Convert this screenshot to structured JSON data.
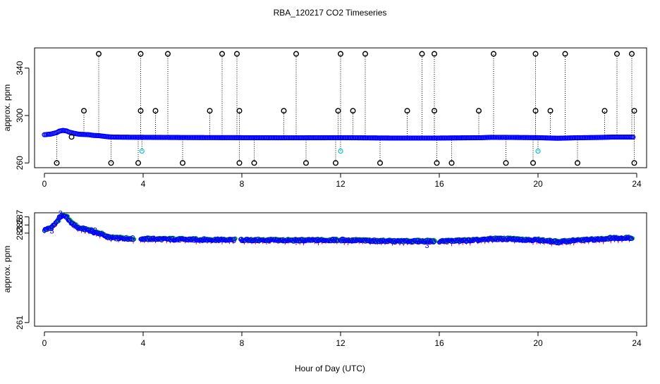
{
  "colors": {
    "frame": "#000000",
    "series_main": "#0000ff",
    "series_flagged": "#00cccc",
    "series_outlier": "#000000",
    "series_alt1": "#00cc00",
    "series_alt2": "#cc00cc",
    "series_alt3": "#ff0000"
  },
  "chart_data": [
    {
      "type": "scatter",
      "title": "RBA_120217  CO2 Timeseries",
      "xlabel": "",
      "ylabel": "approx. ppm",
      "xlim": [
        -0.4,
        24.4
      ],
      "ylim": [
        256,
        357
      ],
      "x_ticks": [
        0,
        4,
        8,
        12,
        16,
        20,
        24
      ],
      "y_ticks": [
        260,
        300,
        340
      ],
      "x_tick_labels": [
        "0",
        "4",
        "8",
        "12",
        "16",
        "20",
        "24"
      ],
      "y_tick_labels": [
        "260",
        "300",
        "340"
      ],
      "baseline_series": {
        "name": "CO2",
        "x": [
          0.0,
          0.25,
          0.5,
          0.6,
          0.75,
          0.9,
          1.0,
          1.2,
          1.4,
          1.6,
          1.8,
          2.0,
          2.2,
          2.4,
          2.6,
          2.8,
          3.2,
          4.0,
          6.0,
          8.0,
          10.0,
          12.0,
          14.0,
          16.0,
          17.7,
          18.1,
          19.0,
          20.0,
          20.8,
          21.5,
          22.5,
          23.0,
          23.7
        ],
        "values": [
          283.8,
          284.3,
          285.6,
          286.8,
          287.4,
          287.0,
          286.0,
          285.0,
          284.2,
          284.0,
          283.8,
          283.2,
          283.0,
          282.5,
          282.0,
          281.8,
          281.7,
          281.6,
          281.4,
          281.3,
          281.2,
          281.3,
          281.0,
          281.0,
          281.3,
          281.6,
          281.5,
          281.3,
          280.8,
          281.2,
          281.5,
          281.8,
          281.8
        ]
      },
      "flagged_points": {
        "name": "flagged",
        "x": [
          3.95,
          12.0,
          20.0
        ],
        "values": [
          270,
          270,
          270
        ]
      },
      "outlier_points": {
        "name": "outliers",
        "x": [
          0.5,
          1.1,
          1.6,
          2.2,
          2.7,
          3.8,
          3.9,
          3.9,
          4.5,
          5.0,
          5.6,
          6.7,
          7.2,
          7.8,
          7.9,
          7.9,
          8.5,
          9.7,
          10.2,
          10.6,
          11.8,
          11.9,
          12.0,
          12.5,
          13.0,
          13.6,
          14.7,
          15.3,
          15.8,
          15.8,
          15.9,
          16.5,
          17.6,
          18.2,
          18.7,
          19.8,
          19.9,
          19.9,
          20.5,
          21.1,
          21.6,
          22.7,
          23.2,
          23.8,
          23.9,
          23.9
        ],
        "values": [
          260,
          282,
          304,
          352,
          260,
          260,
          304,
          352,
          304,
          352,
          260,
          304,
          352,
          352,
          304,
          260,
          260,
          304,
          352,
          260,
          260,
          304,
          352,
          304,
          352,
          260,
          304,
          352,
          352,
          304,
          260,
          260,
          304,
          352,
          260,
          260,
          304,
          352,
          304,
          352,
          260,
          304,
          352,
          352,
          304,
          260
        ]
      }
    },
    {
      "type": "scatter",
      "title": "",
      "xlabel": "Hour of Day (UTC)",
      "ylabel": "approx. ppm",
      "xlim": [
        -0.4,
        24.4
      ],
      "ylim": [
        260.1,
        288.0
      ],
      "x_ticks": [
        0,
        4,
        8,
        12,
        16,
        20,
        24
      ],
      "y_ticks": [
        261,
        283,
        285,
        287
      ],
      "x_tick_labels": [
        "0",
        "4",
        "8",
        "12",
        "16",
        "20",
        "24"
      ],
      "y_tick_labels": [
        "261",
        "283",
        "285",
        "287"
      ],
      "series": [
        {
          "name": "CO2 detail",
          "x": [
            0.0,
            0.25,
            0.5,
            0.6,
            0.75,
            0.9,
            1.0,
            1.2,
            1.4,
            1.6,
            1.8,
            2.0,
            2.2,
            2.4,
            2.6,
            2.8,
            3.2,
            4.0,
            6.0,
            8.0,
            10.0,
            12.0,
            14.0,
            16.0,
            17.7,
            18.1,
            19.0,
            20.0,
            20.8,
            21.5,
            22.5,
            23.0,
            23.7
          ],
          "values": [
            283.8,
            284.3,
            285.6,
            286.8,
            287.4,
            287.0,
            286.0,
            285.0,
            284.2,
            284.0,
            283.8,
            283.2,
            283.0,
            282.5,
            282.0,
            281.8,
            281.7,
            281.6,
            281.4,
            281.3,
            281.2,
            281.3,
            281.0,
            281.0,
            281.3,
            281.6,
            281.5,
            281.3,
            280.8,
            281.2,
            281.5,
            281.8,
            281.8
          ]
        }
      ],
      "gaps": [
        [
          3.6,
          3.9
        ],
        [
          7.7,
          7.95
        ],
        [
          11.9,
          12.0
        ],
        [
          15.8,
          16.0
        ]
      ],
      "annotations": [
        "3",
        "3",
        "3",
        "3",
        "3"
      ]
    }
  ]
}
